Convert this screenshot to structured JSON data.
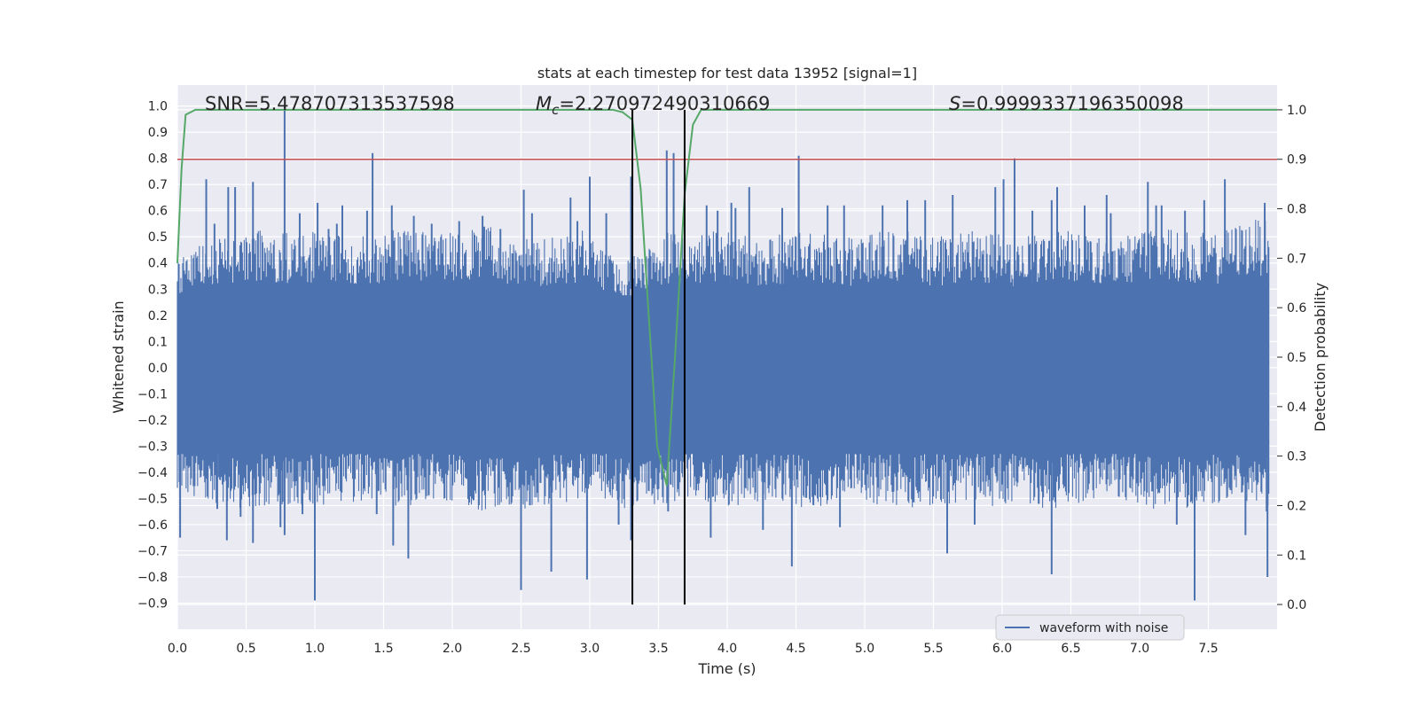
{
  "chart_data": {
    "type": "line",
    "title": "stats at each timestep for test data 13952 [signal=1]",
    "xlabel": "Time (s)",
    "ylabel": "Whitened strain",
    "ylabel_right": "Detection probability",
    "xlim": [
      0.0,
      8.0
    ],
    "ylim": [
      -1.0,
      1.08
    ],
    "ylim_right": [
      -0.05,
      1.05
    ],
    "x_ticks": [
      "0.0",
      "0.5",
      "1.0",
      "1.5",
      "2.0",
      "2.5",
      "3.0",
      "3.5",
      "4.0",
      "4.5",
      "5.0",
      "5.5",
      "6.0",
      "6.5",
      "7.0",
      "7.5"
    ],
    "y_ticks": [
      "1.0",
      "0.9",
      "0.8",
      "0.7",
      "0.6",
      "0.5",
      "0.4",
      "0.3",
      "0.2",
      "0.1",
      "0.0",
      "−0.1",
      "−0.2",
      "−0.3",
      "−0.4",
      "−0.5",
      "−0.6",
      "−0.7",
      "−0.8",
      "−0.9"
    ],
    "y_ticks_right": [
      "1.0",
      "0.9",
      "0.8",
      "0.7",
      "0.6",
      "0.5",
      "0.4",
      "0.3",
      "0.2",
      "0.1",
      "0.0"
    ],
    "grid": true,
    "legend_position": "lower-right",
    "annotations": {
      "snr": "SNR=5.478707313537598",
      "mc_symbol": "M",
      "mc_sub": "c",
      "mc_value": "=2.270972490310669",
      "s_symbol": "S",
      "s_value": "=0.9999337196350098"
    },
    "threshold": {
      "axis": "right",
      "value": 0.9,
      "color": "#c44e52"
    },
    "markers": {
      "x": [
        3.31,
        3.69
      ],
      "color": "#000000"
    },
    "series": [
      {
        "name": "waveform with noise",
        "axis": "left",
        "color": "#4c72b0",
        "envelope_upper": [
          0.42,
          0.47,
          0.5,
          0.52,
          0.53,
          0.52,
          0.51,
          0.53,
          0.52,
          0.5,
          0.52,
          0.54,
          0.52,
          0.51,
          0.53,
          0.55,
          0.52,
          0.5,
          0.49,
          0.51,
          0.53,
          0.46,
          0.4,
          0.48,
          0.52,
          0.5,
          0.53,
          0.52,
          0.51,
          0.5,
          0.52,
          0.53,
          0.51,
          0.5,
          0.52,
          0.54,
          0.52,
          0.5,
          0.51,
          0.53,
          0.52,
          0.5,
          0.51,
          0.52,
          0.53,
          0.52,
          0.5,
          0.52,
          0.54,
          0.53,
          0.52,
          0.51,
          0.55,
          0.57,
          0.55
        ],
        "envelope_lower": [
          -0.48,
          -0.5,
          -0.52,
          -0.54,
          -0.53,
          -0.52,
          -0.55,
          -0.53,
          -0.51,
          -0.52,
          -0.53,
          -0.54,
          -0.52,
          -0.51,
          -0.53,
          -0.55,
          -0.52,
          -0.54,
          -0.53,
          -0.52,
          -0.51,
          -0.5,
          -0.55,
          -0.53,
          -0.52,
          -0.5,
          -0.53,
          -0.54,
          -0.52,
          -0.51,
          -0.53,
          -0.55,
          -0.52,
          -0.5,
          -0.53,
          -0.52,
          -0.54,
          -0.53,
          -0.52,
          -0.51,
          -0.53,
          -0.52,
          -0.55,
          -0.54,
          -0.52,
          -0.51,
          -0.5,
          -0.52,
          -0.55,
          -0.53,
          -0.54,
          -0.52,
          -0.51,
          -0.55,
          -0.56
        ],
        "spikes": [
          [
            0.02,
            -0.65
          ],
          [
            0.21,
            0.72
          ],
          [
            0.27,
            0.55
          ],
          [
            0.29,
            -0.54
          ],
          [
            0.37,
            0.69
          ],
          [
            0.36,
            -0.66
          ],
          [
            0.42,
            0.69
          ],
          [
            0.46,
            -0.57
          ],
          [
            0.55,
            0.71
          ],
          [
            0.55,
            -0.67
          ],
          [
            0.75,
            -0.61
          ],
          [
            0.78,
            1.0
          ],
          [
            0.78,
            -0.64
          ],
          [
            0.89,
            0.59
          ],
          [
            0.91,
            -0.56
          ],
          [
            1.0,
            -0.89
          ],
          [
            1.02,
            0.63
          ],
          [
            1.1,
            0.53
          ],
          [
            1.16,
            0.55
          ],
          [
            1.2,
            0.62
          ],
          [
            1.38,
            0.6
          ],
          [
            1.42,
            0.82
          ],
          [
            1.45,
            -0.56
          ],
          [
            1.56,
            0.62
          ],
          [
            1.57,
            -0.68
          ],
          [
            1.68,
            -0.73
          ],
          [
            1.72,
            0.58
          ],
          [
            1.85,
            0.55
          ],
          [
            2.05,
            0.56
          ],
          [
            2.22,
            0.58
          ],
          [
            2.35,
            0.53
          ],
          [
            2.5,
            -0.85
          ],
          [
            2.52,
            0.68
          ],
          [
            2.58,
            0.59
          ],
          [
            2.72,
            -0.78
          ],
          [
            2.86,
            0.65
          ],
          [
            2.91,
            0.56
          ],
          [
            2.98,
            -0.81
          ],
          [
            3.0,
            0.73
          ],
          [
            3.12,
            0.59
          ],
          [
            3.21,
            -0.6
          ],
          [
            3.3,
            0.73
          ],
          [
            3.3,
            -0.66
          ],
          [
            3.56,
            0.83
          ],
          [
            3.61,
            0.82
          ],
          [
            3.57,
            -0.55
          ],
          [
            3.85,
            0.62
          ],
          [
            3.88,
            -0.65
          ],
          [
            3.93,
            0.6
          ],
          [
            4.03,
            0.63
          ],
          [
            4.06,
            0.61
          ],
          [
            4.16,
            0.69
          ],
          [
            4.26,
            -0.62
          ],
          [
            4.4,
            0.61
          ],
          [
            4.47,
            -0.76
          ],
          [
            4.52,
            0.81
          ],
          [
            4.73,
            0.62
          ],
          [
            4.85,
            0.62
          ],
          [
            4.82,
            -0.61
          ],
          [
            5.13,
            0.62
          ],
          [
            5.31,
            0.64
          ],
          [
            5.44,
            0.64
          ],
          [
            5.6,
            -0.71
          ],
          [
            5.64,
            0.66
          ],
          [
            5.8,
            -0.6
          ],
          [
            5.95,
            0.69
          ],
          [
            6.01,
            0.72
          ],
          [
            6.09,
            0.8
          ],
          [
            6.22,
            0.6
          ],
          [
            6.36,
            0.64
          ],
          [
            6.36,
            -0.79
          ],
          [
            6.4,
            0.69
          ],
          [
            6.6,
            0.62
          ],
          [
            6.76,
            0.66
          ],
          [
            6.79,
            0.59
          ],
          [
            7.06,
            0.71
          ],
          [
            7.12,
            0.62
          ],
          [
            7.16,
            0.62
          ],
          [
            7.27,
            -0.6
          ],
          [
            7.33,
            0.6
          ],
          [
            7.4,
            -0.89
          ],
          [
            7.47,
            0.64
          ],
          [
            7.62,
            0.72
          ],
          [
            7.77,
            -0.64
          ],
          [
            7.91,
            0.63
          ],
          [
            7.93,
            -0.8
          ]
        ]
      },
      {
        "axis": "right",
        "color": "#55a868",
        "x": [
          0.0,
          0.03,
          0.06,
          0.13,
          0.3,
          1.0,
          2.0,
          3.0,
          3.17,
          3.24,
          3.31,
          3.37,
          3.43,
          3.49,
          3.56,
          3.62,
          3.69,
          3.75,
          3.81,
          3.9,
          4.5,
          5.0,
          6.0,
          7.0,
          8.0
        ],
        "y": [
          0.69,
          0.88,
          0.99,
          1.0,
          1.0,
          1.0,
          1.0,
          1.0,
          1.0,
          0.995,
          0.98,
          0.84,
          0.58,
          0.32,
          0.24,
          0.5,
          0.83,
          0.97,
          1.0,
          1.0,
          1.0,
          1.0,
          1.0,
          1.0,
          1.0
        ]
      }
    ]
  }
}
